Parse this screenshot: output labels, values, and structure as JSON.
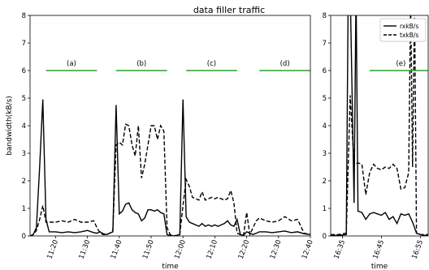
{
  "title": "data filler traffic",
  "chart_data": [
    {
      "type": "line",
      "title": "data filler traffic",
      "xlabel": "time",
      "ylabel": "bandwidth(kB/s)",
      "ylim": [
        0,
        8
      ],
      "yticks": [
        0,
        1,
        2,
        3,
        4,
        5,
        6,
        7,
        8
      ],
      "xlim": [
        "11:12",
        "12:40"
      ],
      "xticks": [
        "11:20",
        "11:30",
        "11:40",
        "11:50",
        "12:00",
        "12:10",
        "12:20",
        "12:30",
        "12:40"
      ],
      "segments": [
        {
          "label": "(a)",
          "x": [
            "11:17",
            "11:33"
          ],
          "y": 6,
          "color": "#2ca02c"
        },
        {
          "label": "(b)",
          "x": [
            "11:39",
            "11:55"
          ],
          "y": 6,
          "color": "#2ca02c"
        },
        {
          "label": "(c)",
          "x": [
            "12:01",
            "12:17"
          ],
          "y": 6,
          "color": "#2ca02c"
        },
        {
          "label": "(d)",
          "x": [
            "12:24",
            "12:40"
          ],
          "y": 6,
          "color": "#2ca02c"
        }
      ],
      "series": [
        {
          "name": "rxkB/s",
          "style": "solid",
          "x": [
            "11:12",
            "11:13",
            "11:14",
            "11:15",
            "11:16",
            "11:17",
            "11:18",
            "11:20",
            "11:22",
            "11:24",
            "11:26",
            "11:28",
            "11:30",
            "11:32",
            "11:33",
            "11:34",
            "11:35",
            "11:36",
            "11:37",
            "11:38",
            "11:39",
            "11:40",
            "11:41",
            "11:42",
            "11:43",
            "11:44",
            "11:45",
            "11:46",
            "11:47",
            "11:48",
            "11:49",
            "11:50",
            "11:51",
            "11:52",
            "11:53",
            "11:54",
            "11:55",
            "11:56",
            "11:57",
            "11:58",
            "11:59",
            "12:00",
            "12:01",
            "12:02",
            "12:03",
            "12:04",
            "12:05",
            "12:06",
            "12:07",
            "12:08",
            "12:09",
            "12:10",
            "12:11",
            "12:12",
            "12:13",
            "12:14",
            "12:15",
            "12:16",
            "12:17",
            "12:18",
            "12:19",
            "12:20",
            "12:21",
            "12:22",
            "12:23",
            "12:24",
            "12:26",
            "12:28",
            "12:30",
            "12:32",
            "12:34",
            "12:36",
            "12:38",
            "12:40"
          ],
          "values": [
            0.0,
            0.05,
            0.3,
            2.5,
            4.95,
            0.6,
            0.15,
            0.15,
            0.12,
            0.15,
            0.12,
            0.15,
            0.2,
            0.12,
            0.1,
            0.15,
            0.08,
            0.05,
            0.1,
            0.15,
            4.75,
            0.8,
            0.9,
            1.15,
            1.2,
            0.95,
            0.85,
            0.8,
            0.55,
            0.65,
            0.95,
            0.95,
            0.9,
            0.95,
            0.85,
            0.8,
            0.05,
            0.02,
            0.0,
            0.02,
            0.05,
            4.95,
            0.7,
            0.5,
            0.45,
            0.4,
            0.35,
            0.45,
            0.35,
            0.4,
            0.35,
            0.4,
            0.35,
            0.4,
            0.45,
            0.55,
            0.4,
            0.35,
            0.6,
            0.05,
            0.02,
            0.15,
            0.1,
            0.05,
            0.1,
            0.15,
            0.15,
            0.12,
            0.15,
            0.18,
            0.12,
            0.15,
            0.08,
            0.05
          ]
        },
        {
          "name": "txkB/s",
          "style": "dashed",
          "x": [
            "11:12",
            "11:13",
            "11:14",
            "11:15",
            "11:16",
            "11:17",
            "11:18",
            "11:20",
            "11:22",
            "11:24",
            "11:26",
            "11:28",
            "11:30",
            "11:32",
            "11:33",
            "11:34",
            "11:35",
            "11:36",
            "11:37",
            "11:38",
            "11:39",
            "11:40",
            "11:41",
            "11:42",
            "11:43",
            "11:44",
            "11:45",
            "11:46",
            "11:47",
            "11:48",
            "11:49",
            "11:50",
            "11:51",
            "11:52",
            "11:53",
            "11:54",
            "11:55",
            "11:56",
            "11:57",
            "11:58",
            "11:59",
            "12:00",
            "12:01",
            "12:02",
            "12:03",
            "12:04",
            "12:05",
            "12:06",
            "12:07",
            "12:08",
            "12:09",
            "12:10",
            "12:11",
            "12:12",
            "12:13",
            "12:14",
            "12:15",
            "12:16",
            "12:17",
            "12:18",
            "12:19",
            "12:20",
            "12:21",
            "12:22",
            "12:23",
            "12:24",
            "12:26",
            "12:28",
            "12:30",
            "12:32",
            "12:34",
            "12:36",
            "12:38",
            "12:40"
          ],
          "values": [
            0.0,
            0.05,
            0.2,
            0.6,
            1.1,
            0.5,
            0.5,
            0.5,
            0.55,
            0.5,
            0.6,
            0.5,
            0.5,
            0.55,
            0.3,
            0.1,
            0.05,
            0.05,
            0.1,
            0.2,
            3.3,
            3.4,
            3.3,
            4.05,
            4.0,
            3.3,
            2.9,
            4.0,
            2.1,
            2.6,
            3.3,
            4.0,
            4.0,
            3.5,
            4.0,
            3.8,
            0.3,
            0.05,
            0.0,
            0.02,
            0.05,
            1.1,
            2.05,
            1.8,
            1.4,
            1.35,
            1.3,
            1.6,
            1.3,
            1.35,
            1.4,
            1.35,
            1.4,
            1.35,
            1.3,
            1.35,
            1.65,
            1.2,
            0.1,
            0.05,
            0.02,
            0.85,
            0.05,
            0.3,
            0.55,
            0.65,
            0.55,
            0.5,
            0.55,
            0.7,
            0.55,
            0.6,
            0.1,
            0.05
          ]
        }
      ]
    },
    {
      "type": "line",
      "xlabel": "time",
      "ylim": [
        0,
        8
      ],
      "yticks": [
        0,
        1,
        2,
        3,
        4,
        5,
        6,
        7,
        8
      ],
      "xlim": [
        "16:32",
        "16:57"
      ],
      "xticks": [
        "16:35",
        "16:45",
        "16:55"
      ],
      "legend": "top-right",
      "segments": [
        {
          "label": "(e)",
          "x": [
            "16:42",
            "16:58"
          ],
          "y": 6,
          "color": "#2ca02c"
        }
      ],
      "series": [
        {
          "name": "rxkB/s",
          "style": "solid",
          "x": [
            "16:32",
            "16:34",
            "16:36",
            "16:36.5",
            "16:37",
            "16:38",
            "16:38.5",
            "16:39",
            "16:40",
            "16:41",
            "16:42",
            "16:43",
            "16:44",
            "16:45",
            "16:46",
            "16:47",
            "16:48",
            "16:49",
            "16:50",
            "16:51",
            "16:52",
            "16:53",
            "16:54",
            "16:55",
            "16:56",
            "16:57"
          ],
          "values": [
            0.02,
            0.02,
            0.05,
            9,
            9,
            1.2,
            9,
            0.9,
            0.85,
            0.6,
            0.8,
            0.85,
            0.8,
            0.75,
            0.85,
            0.6,
            0.7,
            0.45,
            0.8,
            0.75,
            0.8,
            0.5,
            0.1,
            0.05,
            0.02,
            0.02
          ]
        },
        {
          "name": "txkB/s",
          "style": "dashed",
          "x": [
            "16:32",
            "16:34",
            "16:36",
            "16:36.5",
            "16:37",
            "16:38",
            "16:39",
            "16:40",
            "16:41",
            "16:42",
            "16:43",
            "16:44",
            "16:45",
            "16:46",
            "16:47",
            "16:48",
            "16:49",
            "16:50",
            "16:51",
            "16:52",
            "16:52.5",
            "16:53",
            "16:53.5",
            "16:54",
            "16:55",
            "16:56",
            "16:57"
          ],
          "values": [
            0.05,
            0.05,
            0.1,
            2.6,
            5.1,
            2.6,
            2.65,
            2.6,
            1.5,
            2.3,
            2.6,
            2.45,
            2.4,
            2.5,
            2.45,
            2.6,
            2.45,
            1.7,
            1.75,
            2.3,
            8.5,
            2.5,
            8.5,
            0.1,
            0.05,
            0.05,
            0.05
          ]
        }
      ]
    }
  ]
}
